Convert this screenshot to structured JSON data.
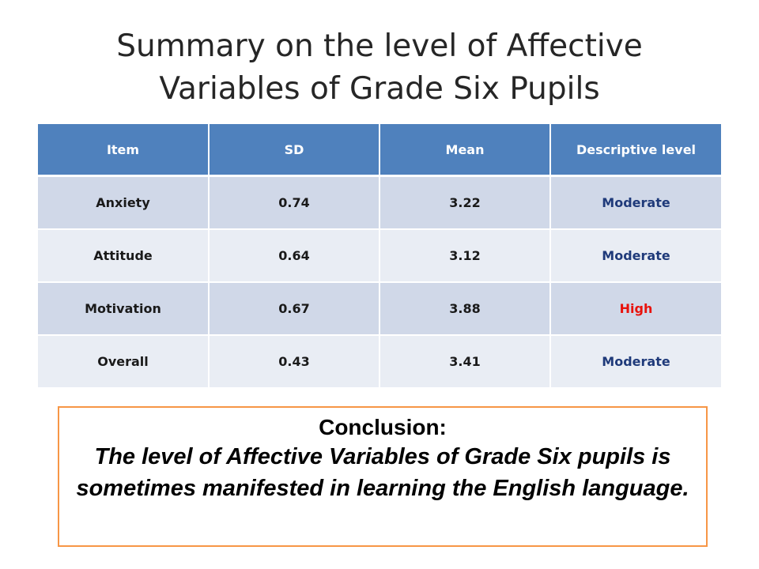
{
  "title": {
    "line1": "Summary on the level of Affective",
    "line2": "Variables of Grade Six Pupils"
  },
  "table": {
    "headers": [
      "Item",
      "SD",
      "Mean",
      "Descriptive level"
    ],
    "rows": [
      {
        "item": "Anxiety",
        "sd": "0.74",
        "mean": "3.22",
        "level": "Moderate"
      },
      {
        "item": "Attitude",
        "sd": "0.64",
        "mean": "3.12",
        "level": "Moderate"
      },
      {
        "item": "Motivation",
        "sd": "0.67",
        "mean": "3.88",
        "level": "High"
      },
      {
        "item": "Overall",
        "sd": "0.43",
        "mean": "3.41",
        "level": "Moderate"
      }
    ]
  },
  "conclusion": {
    "heading": "Conclusion:",
    "text": "The level of Affective Variables of Grade Six pupils is sometimes manifested in learning the English  language."
  },
  "colors": {
    "header_bg": "#4f81bd",
    "row_odd_bg": "#d0d8e8",
    "row_even_bg": "#e9edf4",
    "moderate_text": "#1f3a7a",
    "high_text": "#e8120c",
    "conclusion_border": "#f79646"
  }
}
